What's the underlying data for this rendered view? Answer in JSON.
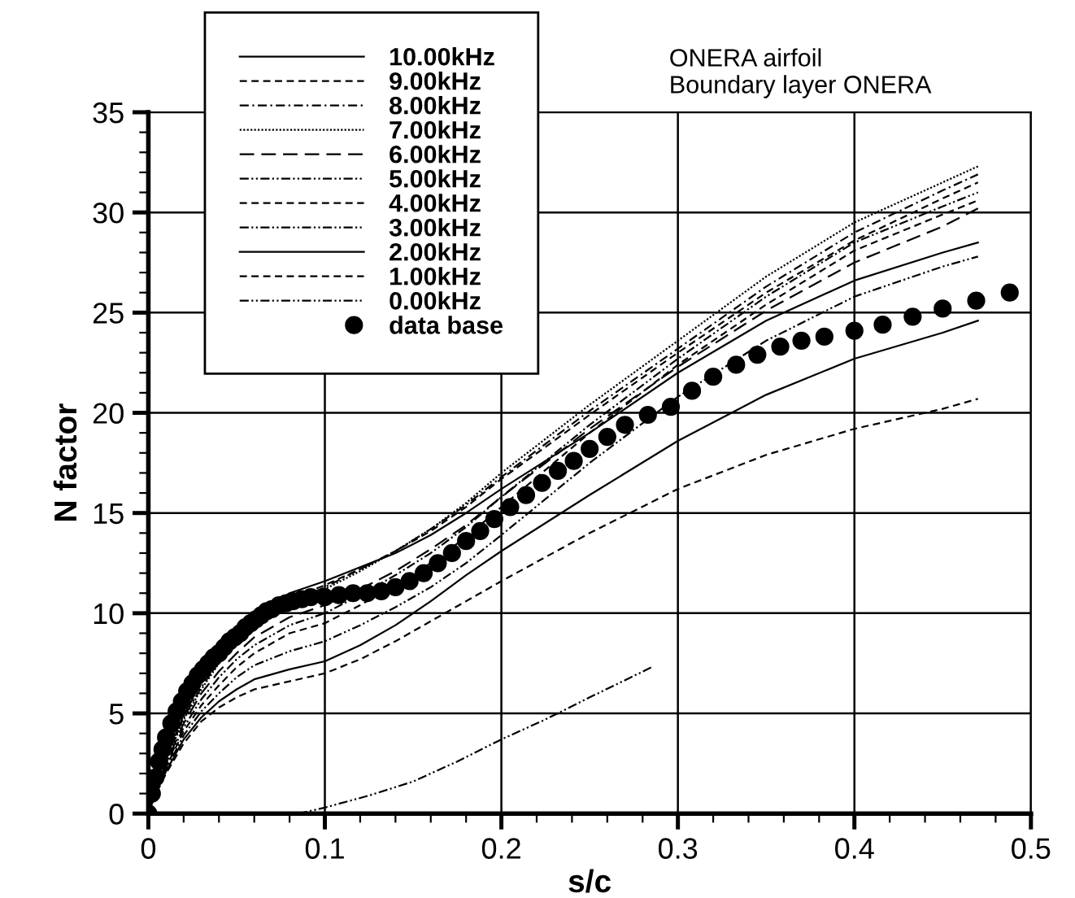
{
  "chart_data": {
    "type": "line",
    "xlabel": "s/c",
    "ylabel": "N factor",
    "annotations": [
      "ONERA airfoil\nBoundary layer ONERA"
    ],
    "xlim": [
      0,
      0.5
    ],
    "xticks": [
      0,
      0.1,
      0.2,
      0.3,
      0.4,
      0.5
    ],
    "ylim": [
      0,
      35
    ],
    "yticks": [
      0,
      5,
      10,
      15,
      20,
      25,
      30,
      35
    ],
    "grid": true,
    "legend": "top left",
    "x": [
      0,
      0.005,
      0.01,
      0.02,
      0.03,
      0.04,
      0.05,
      0.06,
      0.08,
      0.1,
      0.12,
      0.14,
      0.16,
      0.18,
      0.2,
      0.25,
      0.3,
      0.35,
      0.4,
      0.45,
      0.47
    ],
    "series": [
      {
        "name": "10.00kHz",
        "color": "#000000",
        "line_style": "solid",
        "values": [
          0,
          1.6,
          3.0,
          5.2,
          6.9,
          8.1,
          9.1,
          9.9,
          11.0,
          11.6,
          12.3,
          13.0,
          13.9,
          15.0,
          16.2,
          19.0,
          22.0,
          24.6,
          26.6,
          28.0,
          28.5
        ]
      },
      {
        "name": "9.00kHz",
        "color": "#000000",
        "line_style": "dashed",
        "values": [
          0,
          1.5,
          2.8,
          4.9,
          6.5,
          7.8,
          8.8,
          9.6,
          10.7,
          11.4,
          12.2,
          13.1,
          14.1,
          15.3,
          16.7,
          19.9,
          23.0,
          26.0,
          28.6,
          30.7,
          31.5
        ]
      },
      {
        "name": "8.00kHz",
        "color": "#000000",
        "line_style": "dashdot",
        "values": [
          0,
          1.5,
          2.7,
          4.8,
          6.3,
          7.6,
          8.6,
          9.4,
          10.5,
          11.3,
          12.2,
          13.1,
          14.2,
          15.4,
          16.8,
          20.1,
          23.2,
          26.3,
          29.0,
          31.1,
          31.9
        ]
      },
      {
        "name": "7.00kHz",
        "color": "#000000",
        "line_style": "dotted",
        "values": [
          0,
          1.4,
          2.6,
          4.7,
          6.2,
          7.5,
          8.5,
          9.3,
          10.4,
          11.2,
          12.1,
          13.1,
          14.2,
          15.5,
          17.0,
          20.4,
          23.6,
          26.8,
          29.5,
          31.5,
          32.3
        ]
      },
      {
        "name": "6.00kHz",
        "color": "#000000",
        "line_style": "longdash",
        "values": [
          0,
          1.4,
          2.5,
          4.5,
          6.0,
          7.1,
          8.0,
          8.8,
          9.8,
          10.4,
          11.2,
          12.1,
          13.2,
          14.4,
          15.8,
          19.2,
          22.3,
          25.1,
          27.5,
          29.3,
          30.2
        ]
      },
      {
        "name": "5.00kHz",
        "color": "#000000",
        "line_style": "dashdotdot",
        "values": [
          0,
          1.3,
          2.4,
          4.3,
          5.7,
          6.8,
          7.7,
          8.4,
          9.4,
          10.0,
          10.9,
          11.9,
          13.0,
          14.3,
          15.8,
          19.4,
          22.7,
          25.8,
          28.5,
          30.3,
          31.0
        ]
      },
      {
        "name": "4.00kHz",
        "color": "#000000",
        "line_style": "dashed",
        "values": [
          0,
          1.3,
          2.3,
          4.1,
          5.4,
          6.4,
          7.3,
          8.0,
          9.0,
          9.5,
          10.4,
          11.4,
          12.5,
          13.8,
          15.3,
          19.0,
          22.4,
          25.4,
          28.1,
          29.9,
          30.6
        ]
      },
      {
        "name": "3.00kHz",
        "color": "#000000",
        "line_style": "dashdotdot",
        "values": [
          0,
          1.2,
          2.2,
          3.9,
          5.1,
          6.0,
          6.8,
          7.4,
          8.1,
          8.6,
          9.4,
          10.3,
          11.3,
          12.5,
          13.9,
          17.5,
          20.8,
          23.6,
          25.8,
          27.3,
          27.8
        ]
      },
      {
        "name": "2.00kHz",
        "color": "#000000",
        "line_style": "solid",
        "values": [
          0,
          1.2,
          2.1,
          3.7,
          4.8,
          5.6,
          6.2,
          6.7,
          7.2,
          7.6,
          8.4,
          9.4,
          10.6,
          11.9,
          13.1,
          15.9,
          18.6,
          20.9,
          22.7,
          24.0,
          24.6
        ]
      },
      {
        "name": "1.00kHz",
        "color": "#000000",
        "line_style": "dashed",
        "values": [
          0,
          1.1,
          2.0,
          3.5,
          4.6,
          5.3,
          5.8,
          6.2,
          6.6,
          7.0,
          7.7,
          8.6,
          9.6,
          10.6,
          11.6,
          14.0,
          16.2,
          17.9,
          19.2,
          20.2,
          20.7
        ]
      },
      {
        "name": "0.00kHz",
        "color": "#000000",
        "line_style": "dashdotdot",
        "x": [
          0.085,
          0.1,
          0.125,
          0.15,
          0.175,
          0.2,
          0.225,
          0.25,
          0.285
        ],
        "values": [
          0,
          0.3,
          0.9,
          1.6,
          2.6,
          3.7,
          4.7,
          5.8,
          7.3
        ]
      },
      {
        "name": "data base",
        "type": "scatter",
        "marker": "circle",
        "color": "#000000",
        "x": [
          0,
          0.002,
          0.004,
          0.006,
          0.008,
          0.01,
          0.013,
          0.016,
          0.019,
          0.022,
          0.025,
          0.028,
          0.031,
          0.034,
          0.037,
          0.04,
          0.043,
          0.046,
          0.049,
          0.052,
          0.055,
          0.058,
          0.061,
          0.064,
          0.067,
          0.07,
          0.074,
          0.078,
          0.082,
          0.087,
          0.092,
          0.1,
          0.108,
          0.116,
          0.124,
          0.132,
          0.14,
          0.148,
          0.156,
          0.164,
          0.172,
          0.18,
          0.188,
          0.196,
          0.205,
          0.214,
          0.223,
          0.232,
          0.241,
          0.25,
          0.26,
          0.27,
          0.283,
          0.296,
          0.308,
          0.32,
          0.333,
          0.345,
          0.358,
          0.37,
          0.383,
          0.4,
          0.416,
          0.433,
          0.45,
          0.469,
          0.488
        ],
        "values": [
          0,
          1.0,
          1.8,
          2.6,
          3.2,
          3.8,
          4.5,
          5.1,
          5.6,
          6.1,
          6.5,
          6.9,
          7.2,
          7.5,
          7.8,
          8.0,
          8.3,
          8.6,
          8.8,
          9.0,
          9.3,
          9.5,
          9.7,
          9.9,
          10.1,
          10.2,
          10.4,
          10.5,
          10.6,
          10.7,
          10.8,
          10.8,
          10.9,
          11.0,
          11.0,
          11.1,
          11.3,
          11.6,
          12.0,
          12.5,
          13.0,
          13.6,
          14.1,
          14.7,
          15.3,
          15.9,
          16.5,
          17.1,
          17.6,
          18.2,
          18.8,
          19.4,
          19.9,
          20.3,
          21.1,
          21.8,
          22.4,
          22.9,
          23.3,
          23.6,
          23.8,
          24.1,
          24.4,
          24.8,
          25.2,
          25.6,
          26.0
        ]
      }
    ]
  }
}
